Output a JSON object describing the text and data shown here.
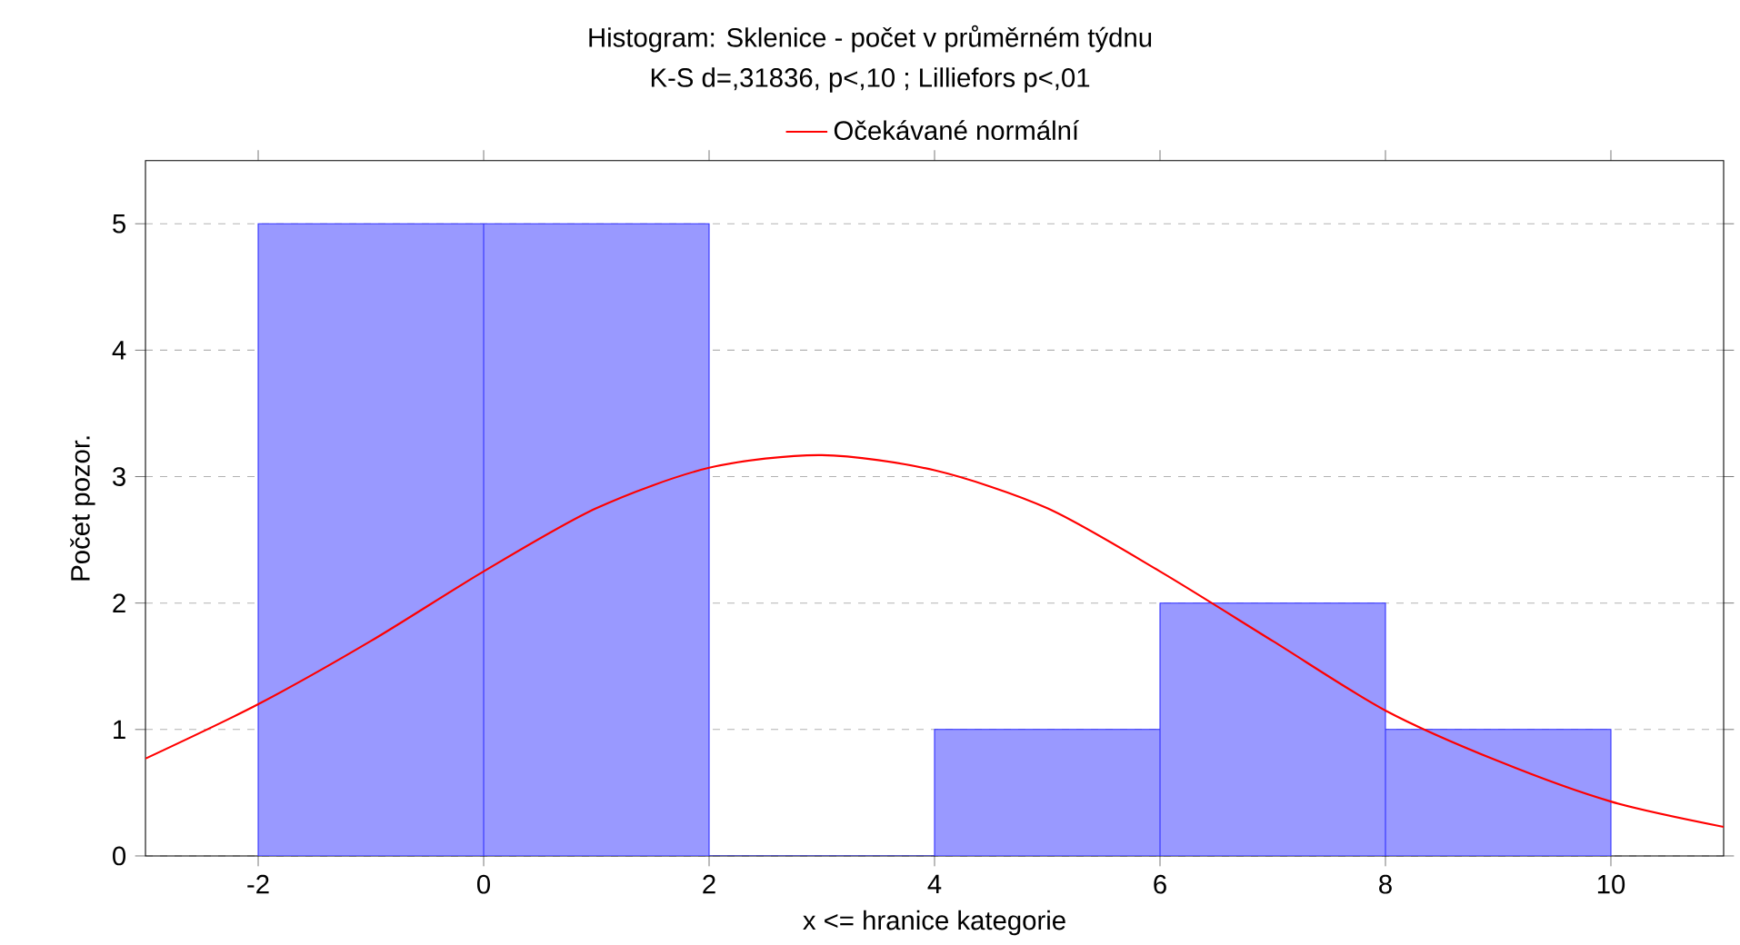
{
  "chart_data": {
    "type": "histogram",
    "title": "Histogram: Sklenice - počet v průměrném týdnu",
    "subtitle": "K-S d=,31836, p<,10 ; Lilliefors p<,01",
    "xlabel": "x <= hranice kategorie",
    "ylabel": "Počet pozor.",
    "bins": [
      -2,
      0,
      2,
      4,
      6,
      8,
      10
    ],
    "values": [
      5,
      5,
      0,
      1,
      2,
      1
    ],
    "color": "#9999ff",
    "series": [
      {
        "type": "line",
        "name": "Očekávané normální",
        "color": "#ff0000",
        "x": [
          -3,
          -2,
          -1,
          0,
          1,
          2,
          3,
          4,
          5,
          6,
          7,
          8,
          9,
          10,
          11
        ],
        "values": [
          0.77,
          1.2,
          1.7,
          2.25,
          2.75,
          3.07,
          3.17,
          3.05,
          2.75,
          2.25,
          1.7,
          1.15,
          0.75,
          0.43,
          0.23
        ]
      }
    ],
    "xlim": [
      -3,
      11
    ],
    "ylim": [
      0,
      5.5
    ],
    "xticks": [
      -2,
      0,
      2,
      4,
      6,
      8,
      10
    ],
    "yticks": [
      0,
      1,
      2,
      3,
      4,
      5
    ],
    "grid": "y",
    "legend": "top",
    "marker": "none",
    "line_style": "solid"
  }
}
